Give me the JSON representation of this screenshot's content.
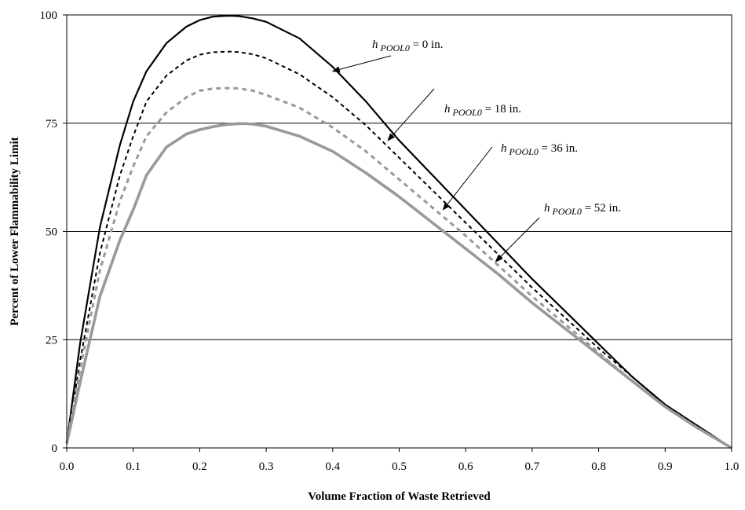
{
  "chart_data": {
    "type": "line",
    "title": "",
    "xlabel": "Volume Fraction of Waste Retrieved",
    "ylabel": "Percent of Lower Flammability Limit",
    "xlim": [
      0.0,
      1.0
    ],
    "ylim": [
      0,
      100
    ],
    "x_ticks": [
      "0.0",
      "0.1",
      "0.2",
      "0.3",
      "0.4",
      "0.5",
      "0.6",
      "0.7",
      "0.8",
      "0.9",
      "1.0"
    ],
    "y_ticks": [
      "0",
      "25",
      "50",
      "75",
      "100"
    ],
    "grid": "horizontal",
    "series": [
      {
        "style": "solid",
        "color": "#000000",
        "x": [
          0.0,
          0.02,
          0.05,
          0.08,
          0.1,
          0.12,
          0.15,
          0.18,
          0.2,
          0.22,
          0.24,
          0.25,
          0.26,
          0.28,
          0.3,
          0.35,
          0.4,
          0.45,
          0.5,
          0.55,
          0.6,
          0.65,
          0.7,
          0.75,
          0.8,
          0.85,
          0.9,
          0.95,
          1.0
        ],
        "values": [
          1,
          24,
          51,
          70,
          80,
          87,
          93.5,
          97.3,
          98.8,
          99.6,
          99.8,
          99.8,
          99.7,
          99.2,
          98.4,
          94.6,
          88,
          80,
          71,
          63,
          55,
          47,
          39,
          31.5,
          24,
          16.5,
          10,
          5,
          0
        ]
      },
      {
        "style": "dashed",
        "color": "#000000",
        "x": [
          0.0,
          0.02,
          0.05,
          0.08,
          0.1,
          0.12,
          0.15,
          0.18,
          0.2,
          0.22,
          0.24,
          0.25,
          0.26,
          0.28,
          0.3,
          0.35,
          0.4,
          0.45,
          0.5,
          0.55,
          0.6,
          0.65,
          0.7,
          0.75,
          0.8,
          0.85,
          0.9,
          0.95,
          1.0
        ],
        "values": [
          1,
          20,
          45,
          63,
          72,
          80,
          86,
          89.5,
          90.8,
          91.4,
          91.5,
          91.5,
          91.4,
          90.9,
          90,
          86.3,
          81,
          74.5,
          67,
          59.5,
          52,
          44.5,
          37,
          30,
          23,
          16.5,
          10,
          5,
          0
        ]
      },
      {
        "style": "dashed",
        "color": "#999999",
        "x": [
          0.0,
          0.02,
          0.05,
          0.08,
          0.1,
          0.12,
          0.15,
          0.18,
          0.2,
          0.22,
          0.24,
          0.25,
          0.26,
          0.28,
          0.3,
          0.35,
          0.4,
          0.45,
          0.5,
          0.55,
          0.6,
          0.65,
          0.7,
          0.75,
          0.8,
          0.85,
          0.9,
          0.95,
          1.0
        ],
        "values": [
          1,
          18,
          41,
          57,
          65,
          72,
          77.5,
          81,
          82.5,
          83,
          83.1,
          83.1,
          83,
          82.5,
          81.5,
          78.6,
          74,
          68.5,
          62,
          55.5,
          49,
          42,
          35,
          28.5,
          22,
          15.5,
          9.5,
          4.5,
          0
        ]
      },
      {
        "style": "solid",
        "color": "#999999",
        "x": [
          0.0,
          0.02,
          0.05,
          0.08,
          0.1,
          0.12,
          0.15,
          0.18,
          0.2,
          0.22,
          0.24,
          0.26,
          0.27,
          0.28,
          0.3,
          0.35,
          0.4,
          0.45,
          0.5,
          0.55,
          0.6,
          0.65,
          0.7,
          0.75,
          0.8,
          0.85,
          0.9,
          0.95,
          1.0
        ],
        "values": [
          1,
          15,
          35,
          48,
          55,
          63,
          69.5,
          72.5,
          73.5,
          74.2,
          74.7,
          74.9,
          74.9,
          74.8,
          74.3,
          72,
          68.5,
          63.5,
          58,
          52,
          46,
          40,
          33.5,
          27.5,
          21.5,
          15.5,
          9.5,
          4.5,
          0
        ]
      }
    ],
    "annotations": [
      {
        "italic": "h",
        "sub": "POOL0",
        "rest": " = 0 in.",
        "pointer": {
          "x": 0.4,
          "y": 87
        }
      },
      {
        "italic": "h",
        "sub": "POOL0",
        "rest": " = 18 in.",
        "pointer": {
          "x": 0.483,
          "y": 71
        }
      },
      {
        "italic": "h",
        "sub": "POOL0",
        "rest": " = 36 in.",
        "pointer": {
          "x": 0.566,
          "y": 55
        }
      },
      {
        "italic": "h",
        "sub": "POOL0",
        "rest": " = 52 in.",
        "pointer": {
          "x": 0.645,
          "y": 43
        }
      }
    ]
  }
}
